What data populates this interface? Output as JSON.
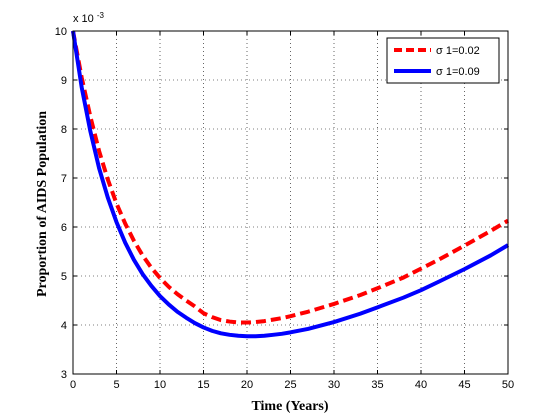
{
  "chart_data": {
    "type": "line",
    "title": "",
    "xlabel": "Time (Years)",
    "ylabel": "Proportion of AIDS Population",
    "xlim": [
      0,
      50
    ],
    "ylim": [
      3,
      10
    ],
    "y_exponent_label": "x 10",
    "y_exponent_power": "-3",
    "xticks": [
      0,
      5,
      10,
      15,
      20,
      25,
      30,
      35,
      40,
      45,
      50
    ],
    "yticks": [
      3,
      4,
      5,
      6,
      7,
      8,
      9,
      10
    ],
    "grid": true,
    "legend_position": "top-right",
    "series": [
      {
        "name": "σ 1=0.02",
        "color": "#ff0000",
        "style": "dashed",
        "x": [
          0,
          1,
          2,
          3,
          4,
          5,
          6,
          7,
          8,
          9,
          10,
          11,
          12,
          13,
          14,
          15,
          16,
          17,
          18,
          19,
          20,
          21,
          22,
          23,
          24,
          25,
          27,
          30,
          33,
          35,
          38,
          40,
          42,
          45,
          48,
          50
        ],
        "y": [
          10.0,
          9.05,
          8.25,
          7.55,
          6.97,
          6.48,
          6.07,
          5.72,
          5.42,
          5.17,
          4.96,
          4.78,
          4.63,
          4.5,
          4.38,
          4.24,
          4.16,
          4.1,
          4.07,
          4.05,
          4.05,
          4.06,
          4.08,
          4.11,
          4.14,
          4.18,
          4.27,
          4.43,
          4.61,
          4.75,
          4.97,
          5.15,
          5.33,
          5.62,
          5.92,
          6.13
        ]
      },
      {
        "name": "σ 1=0.09",
        "color": "#0000ff",
        "style": "solid",
        "x": [
          0,
          1,
          2,
          3,
          4,
          5,
          6,
          7,
          8,
          9,
          10,
          11,
          12,
          13,
          14,
          15,
          16,
          17,
          18,
          19,
          20,
          21,
          22,
          23,
          24,
          25,
          27,
          30,
          33,
          35,
          38,
          40,
          42,
          45,
          48,
          50
        ],
        "y": [
          10.0,
          8.85,
          7.95,
          7.2,
          6.6,
          6.1,
          5.68,
          5.33,
          5.04,
          4.8,
          4.59,
          4.42,
          4.27,
          4.15,
          4.04,
          3.95,
          3.88,
          3.83,
          3.8,
          3.78,
          3.77,
          3.77,
          3.78,
          3.8,
          3.82,
          3.85,
          3.92,
          4.06,
          4.23,
          4.36,
          4.56,
          4.71,
          4.88,
          5.14,
          5.42,
          5.63
        ]
      }
    ]
  }
}
